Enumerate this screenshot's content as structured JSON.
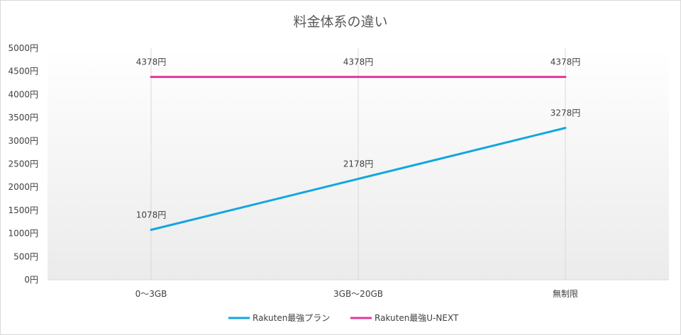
{
  "chart_data": {
    "type": "line",
    "title": "料金体系の違い",
    "categories": [
      "0～3GB",
      "3GB～20GB",
      "無制限"
    ],
    "series": [
      {
        "name": "Rakuten最強プラン",
        "values": [
          1078,
          2178,
          3278
        ],
        "labels": [
          "1078円",
          "2178円",
          "3278円"
        ],
        "color": "#12a6e0"
      },
      {
        "name": "Rakuten最強U-NEXT",
        "values": [
          4378,
          4378,
          4378
        ],
        "labels": [
          "4378円",
          "4378円",
          "4378円"
        ],
        "color": "#e0399a"
      }
    ],
    "yticks": [
      {
        "value": 0,
        "label": "0円"
      },
      {
        "value": 500,
        "label": "500円"
      },
      {
        "value": 1000,
        "label": "1000円"
      },
      {
        "value": 1500,
        "label": "1500円"
      },
      {
        "value": 2000,
        "label": "2000円"
      },
      {
        "value": 2500,
        "label": "2500円"
      },
      {
        "value": 3000,
        "label": "3000円"
      },
      {
        "value": 3500,
        "label": "3500円"
      },
      {
        "value": 4000,
        "label": "4000円"
      },
      {
        "value": 4500,
        "label": "4500円"
      },
      {
        "value": 5000,
        "label": "5000円"
      }
    ],
    "ylim": [
      0,
      5000
    ],
    "xlabel": "",
    "ylabel": "",
    "grid": "vertical",
    "legend": "bottom"
  }
}
